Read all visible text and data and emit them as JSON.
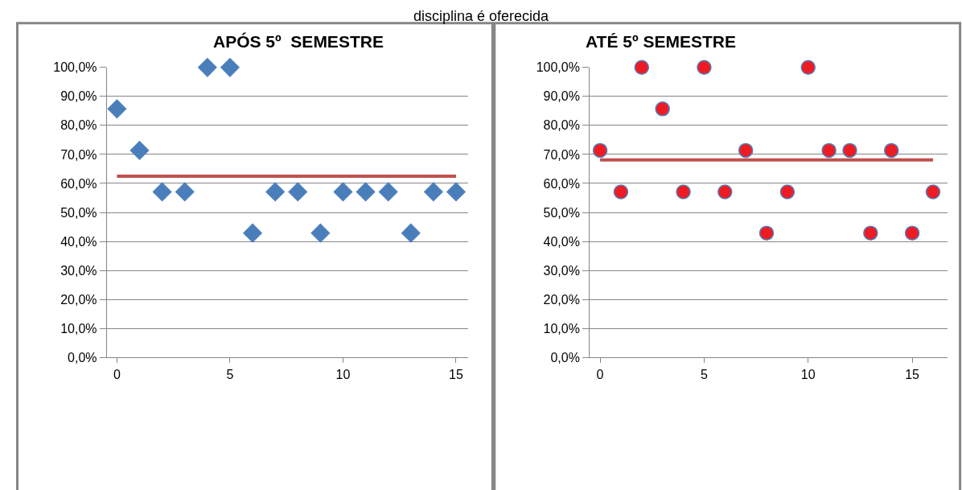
{
  "chart_data": [
    {
      "type": "scatter",
      "title": "APÓS 5º  SEMESTRE",
      "annotations": [
        "disciplina é oferecida"
      ],
      "grid": "y",
      "xlim": [
        -0.45,
        15.55
      ],
      "xticks": [
        0,
        5,
        10,
        15
      ],
      "ylim": [
        0,
        100
      ],
      "yticks": [
        {
          "value": 0,
          "label": "0,0%"
        },
        {
          "value": 10,
          "label": "10,0%"
        },
        {
          "value": 20,
          "label": "20,0%"
        },
        {
          "value": 30,
          "label": "30,0%"
        },
        {
          "value": 40,
          "label": "40,0%"
        },
        {
          "value": 50,
          "label": "50,0%"
        },
        {
          "value": 60,
          "label": "60,0%"
        },
        {
          "value": 70,
          "label": "70,0%"
        },
        {
          "value": 80,
          "label": "80,0%"
        },
        {
          "value": 90,
          "label": "90,0%"
        },
        {
          "value": 100,
          "label": "100,0%"
        }
      ],
      "series": [
        {
          "marker": "diamond",
          "color": "#4a7ebb",
          "x": [
            0,
            1,
            2,
            3,
            4,
            5,
            6,
            7,
            8,
            9,
            10,
            11,
            12,
            13,
            14,
            15
          ],
          "values": [
            85.7,
            71.4,
            57.1,
            57.1,
            100,
            100,
            42.9,
            57.1,
            57.1,
            42.9,
            57.1,
            57.1,
            57.1,
            42.9,
            57.1,
            57.1
          ]
        },
        {
          "type": "line",
          "color": "#c0504d",
          "x": [
            0,
            15
          ],
          "values": [
            62.5,
            62.5
          ]
        }
      ]
    },
    {
      "type": "scatter",
      "title": "ATÉ 5º SEMESTRE",
      "grid": "y",
      "xlim": [
        -0.5,
        16.7
      ],
      "xticks": [
        0,
        5,
        10,
        15
      ],
      "ylim": [
        0,
        100
      ],
      "yticks": [
        {
          "value": 0,
          "label": "0,0%"
        },
        {
          "value": 10,
          "label": "10,0%"
        },
        {
          "value": 20,
          "label": "20,0%"
        },
        {
          "value": 30,
          "label": "30,0%"
        },
        {
          "value": 40,
          "label": "40,0%"
        },
        {
          "value": 50,
          "label": "50,0%"
        },
        {
          "value": 60,
          "label": "60,0%"
        },
        {
          "value": 70,
          "label": "70,0%"
        },
        {
          "value": 80,
          "label": "80,0%"
        },
        {
          "value": 90,
          "label": "90,0%"
        },
        {
          "value": 100,
          "label": "100,0%"
        }
      ],
      "series": [
        {
          "marker": "circle",
          "color": "#ed1c24",
          "x": [
            0,
            1,
            2,
            3,
            4,
            5,
            6,
            7,
            8,
            9,
            10,
            11,
            12,
            13,
            14,
            15,
            16
          ],
          "values": [
            71.4,
            57.1,
            100,
            85.7,
            57.1,
            100,
            57.1,
            71.4,
            42.9,
            57.1,
            100,
            71.4,
            71.4,
            42.9,
            71.4,
            42.9,
            57.1
          ]
        },
        {
          "type": "line",
          "color": "#c0504d",
          "x": [
            0,
            16
          ],
          "values": [
            68.1,
            68.1
          ]
        }
      ]
    }
  ]
}
